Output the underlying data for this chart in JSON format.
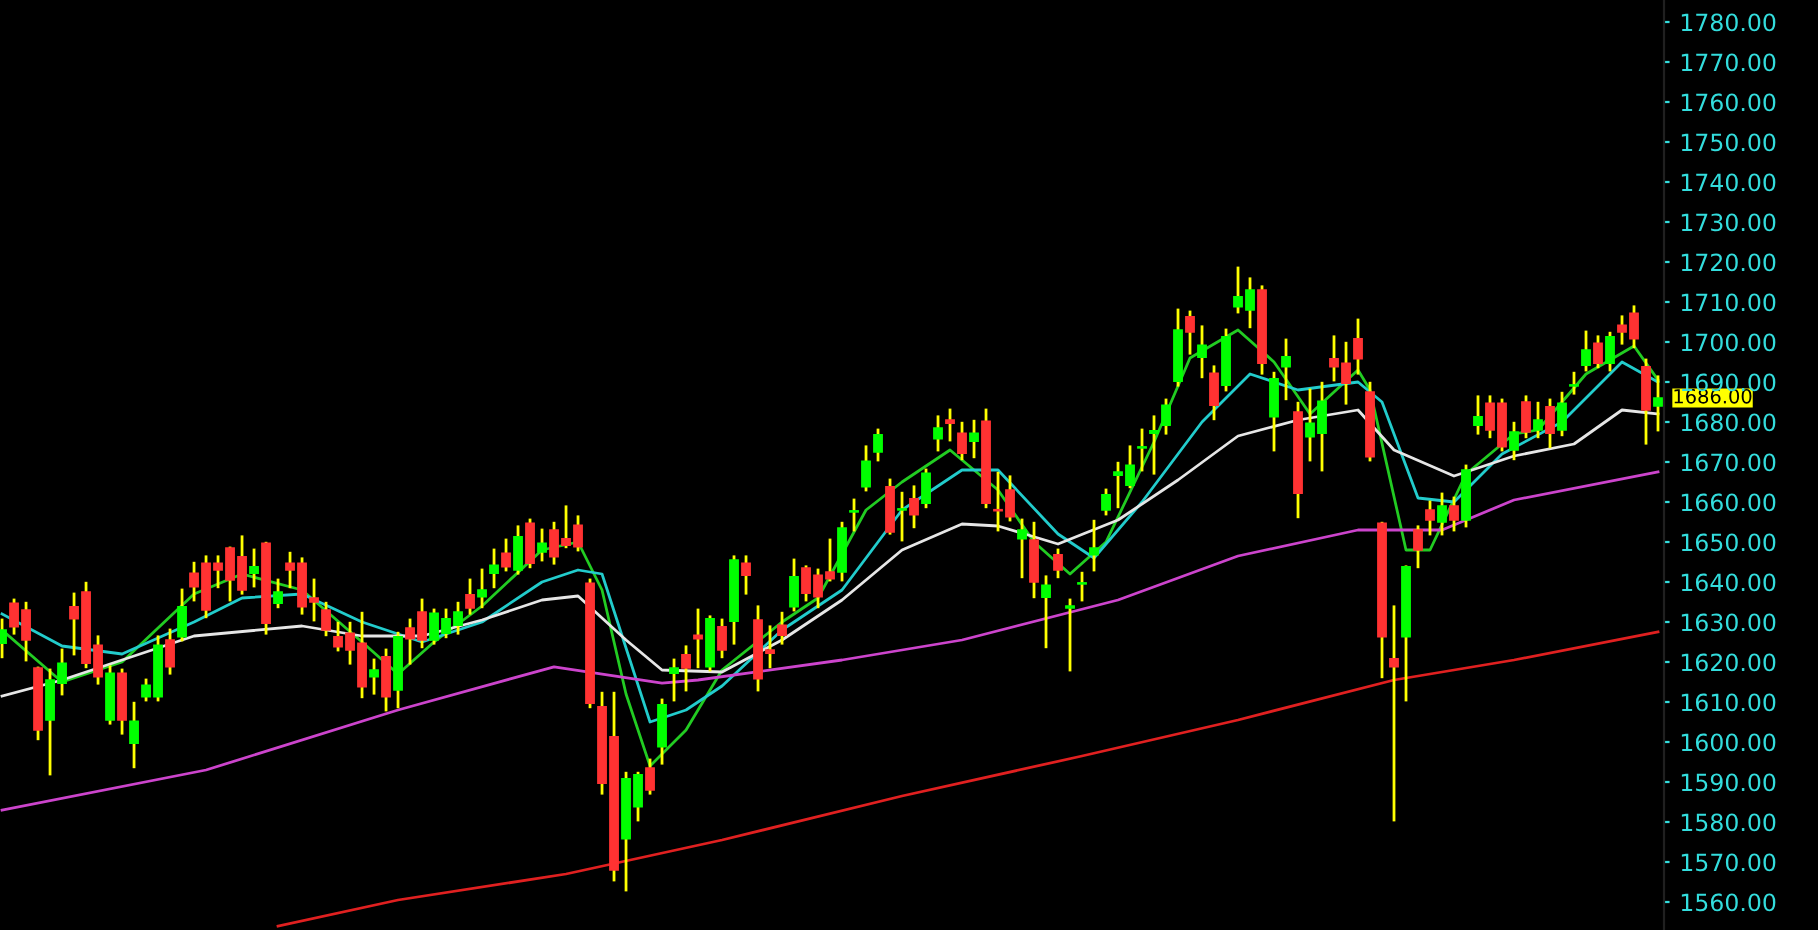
{
  "chart_data": {
    "type": "candlestick",
    "categories": [
      null,
      null,
      null,
      null,
      null,
      null,
      null,
      null,
      null,
      null,
      null,
      null,
      null,
      null,
      null,
      null,
      null,
      null,
      null,
      null,
      null,
      null,
      null,
      null,
      null,
      null,
      null,
      null,
      null,
      null,
      null,
      null,
      null,
      null,
      null,
      null,
      null,
      null,
      null,
      null,
      null,
      null,
      null,
      null,
      null,
      null,
      null,
      null,
      null,
      null,
      null,
      null,
      null,
      null,
      null,
      null,
      null,
      null,
      null,
      null,
      null,
      null,
      null,
      null,
      null,
      null,
      null,
      null,
      null,
      null,
      null,
      null,
      null,
      null,
      null,
      null,
      null,
      null,
      null,
      null,
      null,
      null,
      null,
      null,
      null,
      null,
      null,
      null,
      null,
      null,
      null,
      null,
      null,
      null,
      null,
      null,
      null,
      null,
      null,
      null,
      null,
      null,
      null,
      null,
      null,
      null,
      null,
      null,
      null,
      null,
      null,
      null,
      null,
      null,
      null,
      null,
      null,
      null,
      null,
      null,
      null,
      null,
      null,
      null,
      null,
      null,
      null,
      null,
      null,
      null,
      null,
      null,
      null,
      null,
      null,
      null,
      null,
      null,
      null
    ],
    "ohlc": [
      [
        1624.7,
        1630.5,
        1621.3,
        1628
      ],
      [
        1634.7,
        1635.5,
        1627.2,
        1628.8
      ],
      [
        1633,
        1634.7,
        1620.5,
        1625.5
      ],
      [
        1618.5,
        1618.5,
        1600.8,
        1603
      ],
      [
        1605.5,
        1618,
        1592,
        1615.5
      ],
      [
        1614.7,
        1623,
        1612,
        1619.7
      ],
      [
        1633.8,
        1637,
        1622,
        1630.8
      ],
      [
        1637.5,
        1639.7,
        1618.8,
        1619.7
      ],
      [
        1624.2,
        1626.3,
        1614.7,
        1616.3
      ],
      [
        1605.5,
        1618.8,
        1604.7,
        1617.2
      ],
      [
        1617.2,
        1618,
        1602.2,
        1605.5
      ],
      [
        1599.7,
        1609.7,
        1593.8,
        1605.2
      ],
      [
        1611.3,
        1615.5,
        1610.5,
        1614.2
      ],
      [
        1611.3,
        1626.3,
        1610.5,
        1624.2
      ],
      [
        1625.5,
        1628,
        1617.2,
        1618.8
      ],
      [
        1626.3,
        1638,
        1625.5,
        1633.8
      ],
      [
        1642.2,
        1644.7,
        1635.5,
        1638.8
      ],
      [
        1644.7,
        1646.3,
        1631.3,
        1633
      ],
      [
        1644.7,
        1646.3,
        1638.8,
        1643
      ],
      [
        1648.5,
        1648.5,
        1635.5,
        1640.5
      ],
      [
        1646.3,
        1651.3,
        1637.2,
        1638
      ],
      [
        1642.2,
        1648,
        1639,
        1643.8
      ],
      [
        1649.7,
        1649.7,
        1627.2,
        1629.7
      ],
      [
        1634.7,
        1640.5,
        1633.8,
        1637.5
      ],
      [
        1644.7,
        1647.2,
        1638.8,
        1643
      ],
      [
        1644.7,
        1645.8,
        1632.2,
        1633.8
      ],
      [
        1636,
        1640.5,
        1630.5,
        1635
      ],
      [
        1633,
        1634.7,
        1626.8,
        1628
      ],
      [
        1626.3,
        1629.7,
        1623,
        1623.8
      ],
      [
        1627.2,
        1629.7,
        1619.7,
        1623
      ],
      [
        1624.7,
        1632.2,
        1611.3,
        1613.8
      ],
      [
        1616.3,
        1620.5,
        1612.2,
        1618
      ],
      [
        1621.3,
        1623,
        1608,
        1611.3
      ],
      [
        1613,
        1627.2,
        1608.8,
        1626.3
      ],
      [
        1628.5,
        1630.5,
        1619.7,
        1625.8
      ],
      [
        1632.5,
        1635.5,
        1623.8,
        1625.5
      ],
      [
        1625.5,
        1633,
        1624.7,
        1632.2
      ],
      [
        1627.2,
        1633,
        1626.3,
        1630.8
      ],
      [
        1629.2,
        1634.7,
        1627.2,
        1632.5
      ],
      [
        1636.8,
        1640.5,
        1632.2,
        1633.5
      ],
      [
        1636.3,
        1643,
        1633.8,
        1638
      ],
      [
        1642.2,
        1648,
        1638.8,
        1644.2
      ],
      [
        1647.2,
        1650.5,
        1643,
        1643.8
      ],
      [
        1643,
        1653.8,
        1642.2,
        1651.3
      ],
      [
        1654.7,
        1655.5,
        1643.8,
        1644.7
      ],
      [
        1647.5,
        1653,
        1645.5,
        1649.7
      ],
      [
        1653,
        1654.7,
        1644.7,
        1646.3
      ],
      [
        1650.8,
        1658.8,
        1648.8,
        1649.2
      ],
      [
        1654.2,
        1656.3,
        1648,
        1648.8
      ],
      [
        1639.7,
        1640.5,
        1608.8,
        1609.7
      ],
      [
        1608.8,
        1612.2,
        1587.2,
        1589.7
      ],
      [
        1601.3,
        1612.2,
        1565.5,
        1568
      ],
      [
        1575.8,
        1592.2,
        1563,
        1590.8
      ],
      [
        1583.8,
        1592.2,
        1580.5,
        1591.8
      ],
      [
        1593.5,
        1595.5,
        1587.2,
        1588
      ],
      [
        1598.8,
        1610.5,
        1594.7,
        1609.3
      ],
      [
        1617.2,
        1620.5,
        1610.5,
        1618.5
      ],
      [
        1621.8,
        1623.8,
        1613,
        1618.5
      ],
      [
        1626.7,
        1633,
        1618.8,
        1625.8
      ],
      [
        1618.8,
        1631.3,
        1618,
        1630.8
      ],
      [
        1628.8,
        1630.5,
        1621.3,
        1623
      ],
      [
        1630.2,
        1646.3,
        1624.7,
        1645.5
      ],
      [
        1644.7,
        1646.3,
        1637.2,
        1641.7
      ],
      [
        1630.5,
        1633.8,
        1613,
        1615.8
      ],
      [
        1623,
        1628.8,
        1618.8,
        1622.2
      ],
      [
        1629.2,
        1632.2,
        1624.7,
        1626.7
      ],
      [
        1633.8,
        1645.5,
        1633,
        1641.3
      ],
      [
        1643.5,
        1643.8,
        1635.5,
        1637.2
      ],
      [
        1641.7,
        1643,
        1633.8,
        1636.3
      ],
      [
        1642.5,
        1650.5,
        1640.5,
        1640.8
      ],
      [
        1642.5,
        1654.7,
        1640.5,
        1653.5
      ],
      [
        1657.5,
        1660.5,
        1653,
        1657.8
      ],
      [
        1663.8,
        1673.8,
        1663,
        1670.2
      ],
      [
        1672.5,
        1678,
        1670.5,
        1676.8
      ],
      [
        1663.8,
        1665.5,
        1652.2,
        1652.5
      ],
      [
        1658,
        1662.2,
        1650.5,
        1658.2
      ],
      [
        1660.8,
        1663.8,
        1653.8,
        1656.8
      ],
      [
        1659.7,
        1668,
        1658.8,
        1667.2
      ],
      [
        1675.8,
        1681.3,
        1673,
        1678.5
      ],
      [
        1680.5,
        1683,
        1675.5,
        1679.7
      ],
      [
        1677.2,
        1679.7,
        1670.8,
        1672.2
      ],
      [
        1675.2,
        1680.2,
        1671.3,
        1677.2
      ],
      [
        1680.2,
        1683,
        1658.8,
        1659.7
      ],
      [
        1658,
        1667.2,
        1653,
        1657.8
      ],
      [
        1663,
        1666.3,
        1655.5,
        1656.3
      ],
      [
        1650.8,
        1655.5,
        1641.3,
        1653
      ],
      [
        1650.5,
        1654.7,
        1636.3,
        1640
      ],
      [
        1636.2,
        1641.3,
        1623.8,
        1639.2
      ],
      [
        1646.8,
        1648,
        1641.3,
        1643
      ],
      [
        1633.5,
        1635.5,
        1618,
        1634
      ],
      [
        1639.5,
        1642.2,
        1635.5,
        1639.8
      ],
      [
        1646.8,
        1655.2,
        1643,
        1648.5
      ],
      [
        1658,
        1663,
        1657,
        1661.8
      ],
      [
        1666.7,
        1669.7,
        1658.8,
        1667.5
      ],
      [
        1664.2,
        1673.8,
        1663.8,
        1669.2
      ],
      [
        1673.5,
        1678,
        1668,
        1673.8
      ],
      [
        1677.2,
        1681.3,
        1667.2,
        1677.8
      ],
      [
        1679.2,
        1685.5,
        1677.2,
        1684.2
      ],
      [
        1690.2,
        1708,
        1689.2,
        1703
      ],
      [
        1706.3,
        1707.5,
        1697.2,
        1702.5
      ],
      [
        1696.2,
        1703.8,
        1691.3,
        1699.2
      ],
      [
        1692.2,
        1693.8,
        1680.8,
        1684.2
      ],
      [
        1689.2,
        1703,
        1688,
        1701.3
      ],
      [
        1708.8,
        1718.5,
        1707.5,
        1711.3
      ],
      [
        1708,
        1715.8,
        1703.8,
        1713
      ],
      [
        1713,
        1713.8,
        1692.2,
        1694.7
      ],
      [
        1681.3,
        1692.2,
        1673,
        1690.8
      ],
      [
        1693.8,
        1700.5,
        1685.8,
        1696.3
      ],
      [
        1682.5,
        1684.7,
        1656.3,
        1662.2
      ],
      [
        1676.3,
        1688,
        1670.5,
        1679.7
      ],
      [
        1677.2,
        1689.7,
        1668,
        1685.2
      ],
      [
        1695.8,
        1701.3,
        1690.5,
        1693.8
      ],
      [
        1694.7,
        1699.7,
        1684.7,
        1689.7
      ],
      [
        1700.8,
        1705.5,
        1692.2,
        1695.8
      ],
      [
        1687.5,
        1689.7,
        1670.5,
        1671.3
      ],
      [
        1654.7,
        1654.7,
        1616.3,
        1626.3
      ],
      [
        1620.8,
        1633.8,
        1580.5,
        1618.8
      ],
      [
        1626.3,
        1643.8,
        1610.5,
        1643.8
      ],
      [
        1653,
        1653.8,
        1643.8,
        1648
      ],
      [
        1658,
        1660,
        1652,
        1655.5
      ],
      [
        1655,
        1662,
        1652,
        1659
      ],
      [
        1659,
        1661,
        1653,
        1655.5
      ],
      [
        1655.5,
        1669,
        1654,
        1668
      ],
      [
        1679.2,
        1686.3,
        1677.2,
        1681.3
      ],
      [
        1684.7,
        1686.3,
        1676.3,
        1678
      ],
      [
        1684.7,
        1685.5,
        1673,
        1673.8
      ],
      [
        1673,
        1679.7,
        1670.8,
        1677.5
      ],
      [
        1685,
        1686.3,
        1676.3,
        1677.5
      ],
      [
        1678,
        1684.7,
        1676.3,
        1680.5
      ],
      [
        1683.8,
        1685.5,
        1673.8,
        1677.2
      ],
      [
        1678,
        1687.2,
        1676.8,
        1684.7
      ],
      [
        1689,
        1692.2,
        1687.2,
        1689.3
      ],
      [
        1694.2,
        1702.5,
        1693,
        1698
      ],
      [
        1699.7,
        1701.3,
        1693.8,
        1694.7
      ],
      [
        1694.7,
        1702.2,
        1693,
        1701.3
      ],
      [
        1704.2,
        1706.3,
        1699.7,
        1702.5
      ],
      [
        1707.2,
        1708.8,
        1698.8,
        1700.8
      ],
      [
        1693.8,
        1695.5,
        1674.7,
        1683
      ],
      [
        1684,
        1691.3,
        1678,
        1686
      ]
    ],
    "colors": [
      "#00ff00",
      "#ff3232",
      "#ff3232",
      "#ff3232",
      "#00ff00",
      "#00ff00",
      "#ff3232",
      "#ff3232",
      "#ff3232",
      "#00ff00",
      "#ff3232",
      "#00ff00",
      "#00ff00",
      "#00ff00",
      "#ff3232",
      "#00ff00",
      "#ff3232",
      "#ff3232",
      "#ff3232",
      "#ff3232",
      "#ff3232",
      "#00ff00",
      "#ff3232",
      "#00ff00",
      "#ff3232",
      "#ff3232",
      "#ff3232",
      "#ff3232",
      "#ff3232",
      "#ff3232",
      "#ff3232",
      "#00ff00",
      "#ff3232",
      "#00ff00",
      "#ff3232",
      "#ff3232",
      "#00ff00",
      "#00ff00",
      "#00ff00",
      "#ff3232",
      "#00ff00",
      "#00ff00",
      "#ff3232",
      "#00ff00",
      "#ff3232",
      "#00ff00",
      "#ff3232",
      "#ff3232",
      "#ff3232",
      "#ff3232",
      "#ff3232",
      "#ff3232",
      "#00ff00",
      "#00ff00",
      "#ff3232",
      "#00ff00",
      "#00ff00",
      "#ff3232",
      "#ff3232",
      "#00ff00",
      "#ff3232",
      "#00ff00",
      "#ff3232",
      "#ff3232",
      "#ff3232",
      "#ff3232",
      "#00ff00",
      "#ff3232",
      "#ff3232",
      "#ff3232",
      "#00ff00",
      "#00ff00",
      "#00ff00",
      "#00ff00",
      "#ff3232",
      "#00ff00",
      "#ff3232",
      "#00ff00",
      "#00ff00",
      "#ff3232",
      "#ff3232",
      "#00ff00",
      "#ff3232",
      "#ff3232",
      "#ff3232",
      "#00ff00",
      "#ff3232",
      "#00ff00",
      "#ff3232",
      "#00ff00",
      "#00ff00",
      "#00ff00",
      "#00ff00",
      "#00ff00",
      "#00ff00",
      "#00ff00",
      "#00ff00",
      "#00ff00",
      "#00ff00",
      "#ff3232",
      "#00ff00",
      "#ff3232",
      "#00ff00",
      "#00ff00",
      "#00ff00",
      "#ff3232",
      "#00ff00",
      "#00ff00",
      "#ff3232",
      "#00ff00",
      "#00ff00",
      "#ff3232",
      "#ff3232",
      "#ff3232",
      "#ff3232",
      "#ff3232",
      "#ff3232",
      "#00ff00",
      "#ff3232",
      "#ff3232",
      "#00ff00",
      "#ff3232",
      "#00ff00",
      "#00ff00",
      "#ff3232",
      "#ff3232",
      "#00ff00",
      "#ff3232",
      "#00ff00",
      "#ff3232",
      "#00ff00",
      "#00ff00",
      "#00ff00",
      "#ff3232",
      "#00ff00",
      "#ff3232",
      "#ff3232",
      "#ff3232",
      "#00ff00"
    ],
    "series": [
      {
        "type": "line",
        "color": "#22cc22",
        "values": [
          1628,
          null,
          null,
          null,
          null,
          1615,
          null,
          null,
          null,
          null,
          1620,
          null,
          null,
          null,
          null,
          null,
          1637,
          null,
          null,
          null,
          1642,
          null,
          null,
          null,
          null,
          1638,
          null,
          null,
          null,
          null,
          1625,
          null,
          null,
          1617,
          null,
          null,
          1625,
          null,
          null,
          null,
          1634,
          null,
          null,
          null,
          null,
          1648,
          null,
          null,
          1650,
          null,
          1638,
          null,
          1612,
          null,
          1594,
          null,
          null,
          1603,
          null,
          null,
          1618,
          null,
          null,
          null,
          null,
          1630,
          null,
          null,
          1636,
          null,
          null,
          null,
          1658,
          null,
          null,
          1665,
          null,
          null,
          null,
          1673,
          null,
          null,
          null,
          1663,
          null,
          null,
          1650,
          null,
          null,
          1642,
          null,
          null,
          1650,
          null,
          null,
          null,
          1675,
          null,
          null,
          1696,
          null,
          null,
          null,
          1703,
          null,
          null,
          1695,
          null,
          null,
          1682,
          null,
          null,
          null,
          1693,
          1688,
          null,
          null,
          1648,
          null,
          1648,
          null,
          null,
          1667,
          null,
          null,
          null,
          1677,
          null,
          1678,
          null,
          null,
          null,
          1692,
          null,
          null,
          null,
          1699,
          null,
          1690.5
        ]
      },
      {
        "type": "line",
        "color": "#22cccc",
        "values": [
          1632,
          null,
          null,
          null,
          null,
          1624,
          null,
          null,
          null,
          null,
          1622,
          null,
          null,
          null,
          null,
          null,
          1630,
          null,
          null,
          null,
          1636,
          null,
          null,
          null,
          null,
          1637,
          null,
          null,
          null,
          null,
          1630,
          null,
          null,
          null,
          null,
          1625,
          null,
          null,
          null,
          null,
          1630,
          null,
          null,
          null,
          null,
          1640,
          null,
          null,
          1643,
          null,
          1642,
          null,
          null,
          null,
          1605,
          null,
          null,
          1608,
          null,
          null,
          1614,
          null,
          null,
          null,
          null,
          1628,
          null,
          null,
          null,
          null,
          1638,
          null,
          null,
          null,
          null,
          1658,
          null,
          null,
          null,
          null,
          1668,
          null,
          null,
          1668,
          null,
          null,
          null,
          null,
          1652,
          null,
          null,
          1646,
          null,
          null,
          null,
          1660,
          null,
          null,
          null,
          null,
          1680,
          null,
          null,
          null,
          1692,
          null,
          null,
          null,
          1688,
          null,
          null,
          null,
          null,
          1690,
          null,
          1685,
          null,
          null,
          1661,
          null,
          null,
          1660,
          null,
          null,
          null,
          1672,
          null,
          null,
          null,
          null,
          1680,
          null,
          null,
          null,
          null,
          1695,
          null,
          null,
          1690
        ]
      },
      {
        "type": "line",
        "color": "#e6e6e6",
        "values": [
          1611.5,
          null,
          null,
          null,
          null,
          1615.5,
          null,
          null,
          null,
          null,
          1620.5,
          null,
          null,
          null,
          null,
          null,
          1626.5,
          null,
          null,
          null,
          null,
          null,
          null,
          null,
          null,
          1629,
          null,
          null,
          null,
          null,
          1626.5,
          null,
          null,
          null,
          null,
          1626.5,
          null,
          null,
          null,
          null,
          1630.5,
          null,
          null,
          null,
          null,
          1635.5,
          null,
          null,
          1636.5,
          null,
          null,
          null,
          1625.5,
          null,
          null,
          1618,
          null,
          null,
          null,
          null,
          1617.5,
          null,
          null,
          null,
          null,
          1625.5,
          null,
          null,
          null,
          null,
          1635.5,
          null,
          null,
          null,
          null,
          1648,
          null,
          null,
          null,
          null,
          1654.5,
          null,
          null,
          1654,
          null,
          null,
          null,
          null,
          1649.5,
          null,
          null,
          null,
          null,
          1655.5,
          null,
          null,
          null,
          null,
          1665.5,
          null,
          null,
          null,
          null,
          1676.5,
          null,
          null,
          null,
          null,
          1680.5,
          null,
          null,
          null,
          null,
          1683,
          null,
          null,
          1673,
          null,
          null,
          null,
          null,
          1666.5,
          null,
          null,
          null,
          null,
          1671.5,
          null,
          null,
          null,
          null,
          1674.5,
          null,
          null,
          null,
          1683,
          null,
          null,
          1682
        ]
      },
      {
        "type": "line",
        "color": "#cc44cc",
        "values": [
          1583,
          null,
          null,
          null,
          null,
          null,
          null,
          null,
          null,
          null,
          null,
          null,
          null,
          null,
          null,
          null,
          null,
          1593,
          null,
          null,
          null,
          null,
          null,
          null,
          null,
          null,
          null,
          null,
          null,
          null,
          null,
          null,
          null,
          1608,
          null,
          null,
          null,
          null,
          null,
          null,
          null,
          null,
          null,
          null,
          null,
          null,
          1618.8,
          null,
          null,
          null,
          null,
          null,
          null,
          null,
          null,
          1614.7,
          null,
          null,
          1615.5,
          null,
          null,
          null,
          null,
          null,
          null,
          null,
          null,
          null,
          null,
          null,
          1620.5,
          null,
          null,
          null,
          null,
          null,
          null,
          null,
          null,
          null,
          1625.5,
          null,
          null,
          null,
          null,
          null,
          null,
          null,
          null,
          null,
          null,
          null,
          null,
          1635.5,
          null,
          null,
          null,
          null,
          null,
          null,
          null,
          null,
          null,
          1646.5,
          null,
          null,
          null,
          null,
          null,
          null,
          null,
          null,
          null,
          1653,
          null,
          null,
          null,
          null,
          null,
          null,
          1653,
          null,
          null,
          null,
          null,
          null,
          1660.5,
          null,
          null,
          null,
          null,
          null,
          null,
          null,
          null,
          null,
          null,
          null,
          1667.5
        ]
      },
      {
        "type": "line",
        "color": "#e02020",
        "values": [
          null,
          null,
          null,
          null,
          null,
          null,
          null,
          null,
          null,
          null,
          null,
          null,
          null,
          null,
          null,
          null,
          null,
          null,
          null,
          null,
          null,
          null,
          null,
          1554,
          null,
          null,
          null,
          null,
          null,
          null,
          null,
          null,
          null,
          1560.5,
          null,
          null,
          null,
          null,
          null,
          null,
          null,
          null,
          null,
          null,
          null,
          null,
          null,
          1567,
          null,
          null,
          null,
          null,
          null,
          null,
          null,
          null,
          null,
          null,
          null,
          null,
          1575.5,
          null,
          null,
          null,
          null,
          null,
          null,
          null,
          null,
          null,
          null,
          null,
          null,
          null,
          null,
          1586.5,
          null,
          null,
          null,
          null,
          null,
          null,
          null,
          null,
          null,
          null,
          null,
          null,
          null,
          null,
          1596.5,
          null,
          null,
          null,
          null,
          null,
          null,
          null,
          null,
          null,
          null,
          null,
          null,
          1605.5,
          null,
          null,
          null,
          null,
          null,
          null,
          null,
          null,
          null,
          null,
          null,
          null,
          1615.5,
          null,
          null,
          null,
          null,
          null,
          null,
          null,
          null,
          null,
          1620.5,
          null,
          null,
          null,
          null,
          null,
          null,
          null,
          null,
          null,
          null,
          null,
          1627.5
        ]
      }
    ],
    "ylim": [
      1553,
      1785.5
    ],
    "yticks": [
      {
        "value": 1560,
        "label": "1560.00"
      },
      {
        "value": 1570,
        "label": "1570.00"
      },
      {
        "value": 1580,
        "label": "1580.00"
      },
      {
        "value": 1590,
        "label": "1590.00"
      },
      {
        "value": 1600,
        "label": "1600.00"
      },
      {
        "value": 1610,
        "label": "1610.00"
      },
      {
        "value": 1620,
        "label": "1620.00"
      },
      {
        "value": 1630,
        "label": "1630.00"
      },
      {
        "value": 1640,
        "label": "1640.00"
      },
      {
        "value": 1650,
        "label": "1650.00"
      },
      {
        "value": 1660,
        "label": "1660.00"
      },
      {
        "value": 1670,
        "label": "1670.00"
      },
      {
        "value": 1680,
        "label": "1680.00"
      },
      {
        "value": 1690,
        "label": "1690.00"
      },
      {
        "value": 1700,
        "label": "1700.00"
      },
      {
        "value": 1710,
        "label": "1710.00"
      },
      {
        "value": 1720,
        "label": "1720.00"
      },
      {
        "value": 1730,
        "label": "1730.00"
      },
      {
        "value": 1740,
        "label": "1740.00"
      },
      {
        "value": 1750,
        "label": "1750.00"
      },
      {
        "value": 1760,
        "label": "1760.00"
      },
      {
        "value": 1770,
        "label": "1770.00"
      },
      {
        "value": 1780,
        "label": "1780.00"
      }
    ],
    "tick_labels": "y",
    "grid": false,
    "legend": false,
    "annotations": [
      "1686.00"
    ]
  }
}
